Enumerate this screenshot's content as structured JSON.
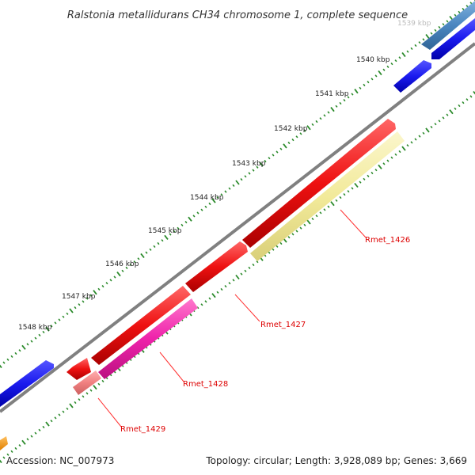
{
  "title": "Ralstonia metallidurans CH34 chromosome 1, complete sequence",
  "accession": "Accession: NC_007973",
  "summary": "Topology: circular; Length: 3,928,089 bp; Genes: 3,669",
  "ticks": [
    "1539 kbp",
    "1540 kbp",
    "1541 kbp",
    "1542 kbp",
    "1543 kbp",
    "1544 kbp",
    "1545 kbp",
    "1546 kbp",
    "1547 kbp",
    "1548 kbp"
  ],
  "gene_labels": {
    "rmet_1426": "Rmet_1426",
    "rmet_1427": "Rmet_1427",
    "rmet_1428": "Rmet_1428",
    "rmet_1429": "Rmet_1429"
  },
  "colors": {
    "backbone": "#808080",
    "tick_dots": "#2a8a2a",
    "red": "#ee1111",
    "pale_yellow": "#f2ea9a",
    "magenta": "#ee22aa",
    "salmon": "#f08080",
    "blue": "#1a1aee",
    "steel_blue": "#4a86c0",
    "orange": "#ff9900",
    "leader": "#ff3333"
  }
}
